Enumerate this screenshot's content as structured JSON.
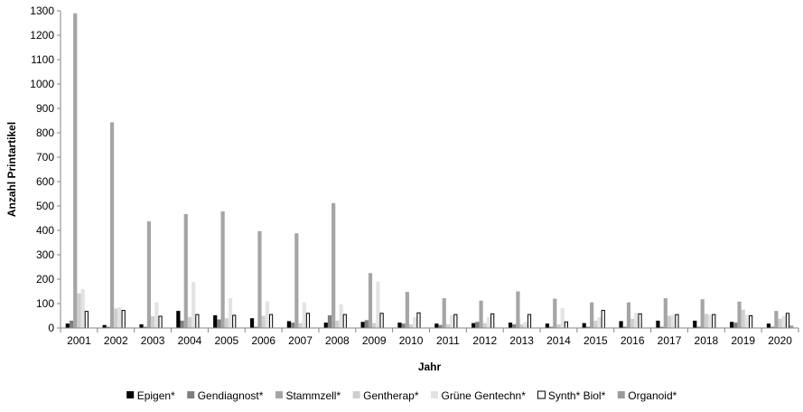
{
  "chart_data": {
    "type": "bar",
    "title": "",
    "xlabel": "Jahr",
    "ylabel": "Anzahl Printartikel",
    "ylim": [
      0,
      1300
    ],
    "yticks": [
      0,
      100,
      200,
      300,
      400,
      500,
      600,
      700,
      800,
      900,
      1000,
      1100,
      1200,
      1300
    ],
    "grid": false,
    "legend_position": "bottom",
    "categories": [
      "2001",
      "2002",
      "2003",
      "2004",
      "2005",
      "2006",
      "2007",
      "2008",
      "2009",
      "2010",
      "2011",
      "2012",
      "2013",
      "2014",
      "2015",
      "2016",
      "2017",
      "2018",
      "2019",
      "2020"
    ],
    "series": [
      {
        "name": "Epigen*",
        "color": "#000000",
        "stroke": "none",
        "values": [
          18,
          12,
          15,
          70,
          52,
          40,
          28,
          22,
          25,
          22,
          18,
          20,
          22,
          18,
          20,
          28,
          30,
          30,
          25,
          18
        ]
      },
      {
        "name": "Gendiagnost*",
        "color": "#7f7f7f",
        "stroke": "none",
        "values": [
          30,
          5,
          5,
          30,
          35,
          5,
          22,
          52,
          32,
          18,
          12,
          25,
          15,
          5,
          5,
          5,
          5,
          5,
          22,
          5
        ]
      },
      {
        "name": "Stammzell*",
        "color": "#a5a5a5",
        "stroke": "none",
        "values": [
          1290,
          843,
          437,
          467,
          478,
          397,
          388,
          512,
          225,
          148,
          122,
          112,
          150,
          120,
          105,
          105,
          122,
          118,
          108,
          70
        ]
      },
      {
        "name": "Gentherap*",
        "color": "#cfcfcf",
        "stroke": "none",
        "values": [
          142,
          80,
          48,
          45,
          40,
          50,
          20,
          30,
          20,
          15,
          15,
          20,
          15,
          15,
          30,
          38,
          50,
          58,
          75,
          38
        ]
      },
      {
        "name": "Grüne Gentechn*",
        "color": "#e3e3e3",
        "stroke": "none",
        "values": [
          160,
          85,
          105,
          188,
          122,
          110,
          105,
          97,
          190,
          45,
          52,
          45,
          25,
          82,
          45,
          62,
          55,
          55,
          55,
          50
        ]
      },
      {
        "name": "Synth* Biol*",
        "color": "#ffffff",
        "stroke": "#000000",
        "values": [
          68,
          72,
          48,
          55,
          52,
          55,
          60,
          55,
          60,
          62,
          55,
          58,
          55,
          25,
          72,
          58,
          55,
          55,
          50,
          60
        ]
      },
      {
        "name": "Organoid*",
        "color": "#9a9a9a",
        "stroke": "none",
        "values": [
          0,
          0,
          0,
          0,
          0,
          0,
          0,
          0,
          0,
          0,
          0,
          0,
          0,
          0,
          0,
          0,
          0,
          0,
          0,
          10
        ]
      }
    ]
  }
}
